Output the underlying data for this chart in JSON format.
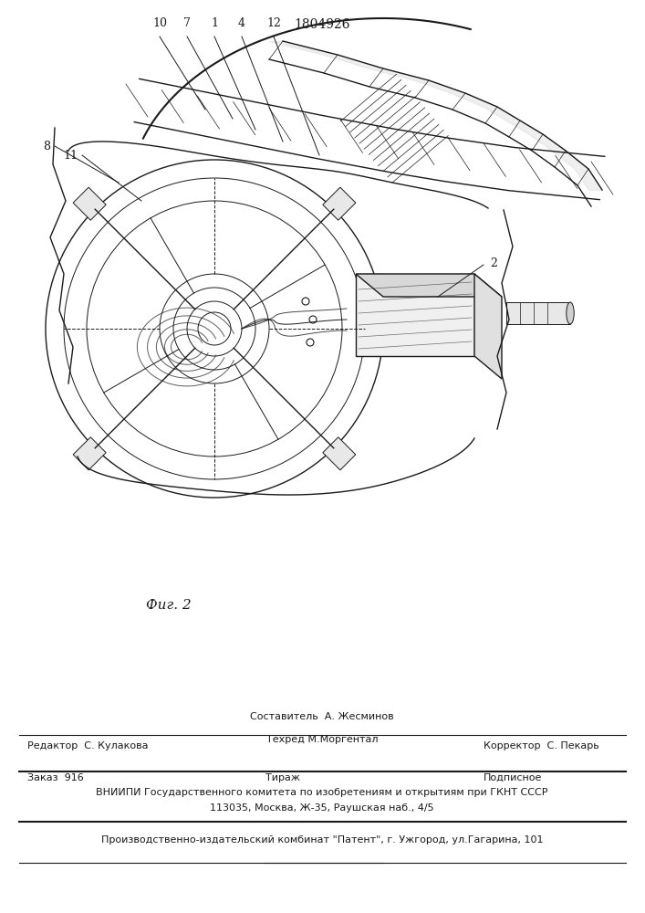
{
  "patent_number": "1804926",
  "fig_label": "Фиг. 2",
  "part_labels": [
    "10",
    "7",
    "1",
    "4",
    "12",
    "8",
    "11",
    "2"
  ],
  "bg_color": "#f5f5f0",
  "line_color": "#1a1a1a",
  "hatch_color": "#1a1a1a",
  "footer": {
    "line1_left": "Редактор  С. Кулакова",
    "line1_center": "Составитель  А. Жесминов",
    "line1_center2": "Техред М.Моргентал",
    "line1_right": "Корректор  С. Пекарь",
    "line2_left": "Заказ  916",
    "line2_center": "Тираж",
    "line2_right": "Подписное",
    "line3": "ВНИИПИ Государственного комитета по изобретениям и открытиям при ГКНТ СССР",
    "line4": "113035, Москва, Ж-35, Раушская наб., 4/5",
    "line5": "Производственно-издательский комбинат \"Патент\", г. Ужгород, ул.Гагарина, 101"
  }
}
